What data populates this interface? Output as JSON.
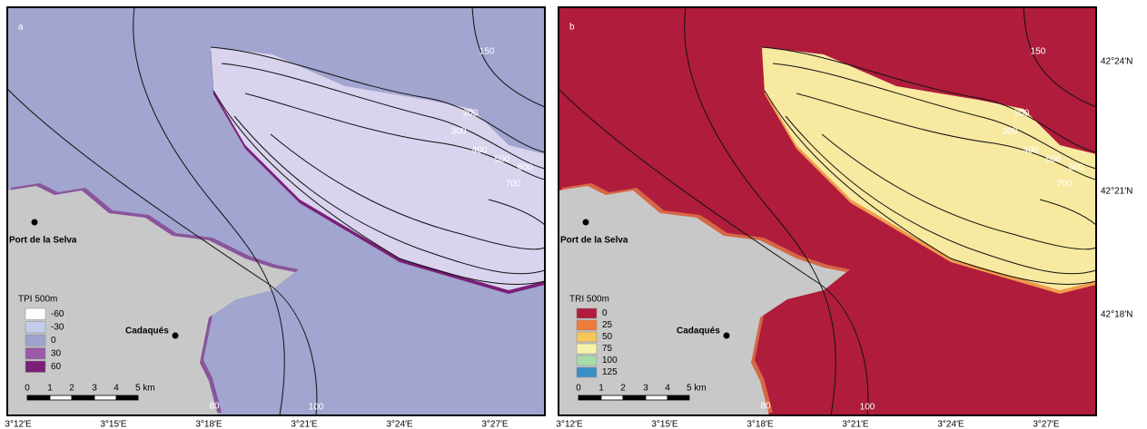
{
  "panels": [
    {
      "label": "a",
      "base_color": "#a1a5cf",
      "canyon_color": "#d9d3ee",
      "rim_color": "#7a1f78",
      "legend": {
        "title": "TPI 500m",
        "entries": [
          {
            "label": "-60",
            "color": "#ffffff"
          },
          {
            "label": "-30",
            "color": "#c3cdea"
          },
          {
            "label": "0",
            "color": "#9ea3cc"
          },
          {
            "label": "30",
            "color": "#9a5aa8"
          },
          {
            "label": "60",
            "color": "#7a1f78"
          }
        ]
      },
      "contour_labels": [
        "150",
        "200",
        "300",
        "400",
        "500",
        "600",
        "700",
        "80",
        "100"
      ],
      "places": [
        "Port de la Selva",
        "Cadaqués"
      ],
      "scale_labels": [
        "0",
        "1",
        "2",
        "3",
        "4",
        "5 km"
      ],
      "x_labels": [
        "3°12′E",
        "3°15′E",
        "3°18′E",
        "3°21′E",
        "3°24′E",
        "3°27′E"
      ]
    },
    {
      "label": "b",
      "base_color": "#b01c3c",
      "canyon_color": "#f7e9a0",
      "rim_color": "#f09a4c",
      "legend": {
        "title": "TRI 500m",
        "entries": [
          {
            "label": "0",
            "color": "#b01c3c"
          },
          {
            "label": "25",
            "color": "#ef7a3a"
          },
          {
            "label": "50",
            "color": "#f6c65a"
          },
          {
            "label": "75",
            "color": "#f8f3a8"
          },
          {
            "label": "100",
            "color": "#a8dca8"
          },
          {
            "label": "125",
            "color": "#3a8fc4"
          }
        ]
      },
      "contour_labels": [
        "150",
        "200",
        "300",
        "400",
        "500",
        "600",
        "700",
        "80",
        "100"
      ],
      "places": [
        "Port de la Selva",
        "Cadaqués"
      ],
      "scale_labels": [
        "0",
        "1",
        "2",
        "3",
        "4",
        "5 km"
      ],
      "x_labels": [
        "3°12′E",
        "3°15′E",
        "3°18′E",
        "3°21′E",
        "3°24′E",
        "3°27′E"
      ]
    }
  ],
  "y_labels": [
    "42°24′N",
    "42°21′N",
    "42°18′N"
  ]
}
